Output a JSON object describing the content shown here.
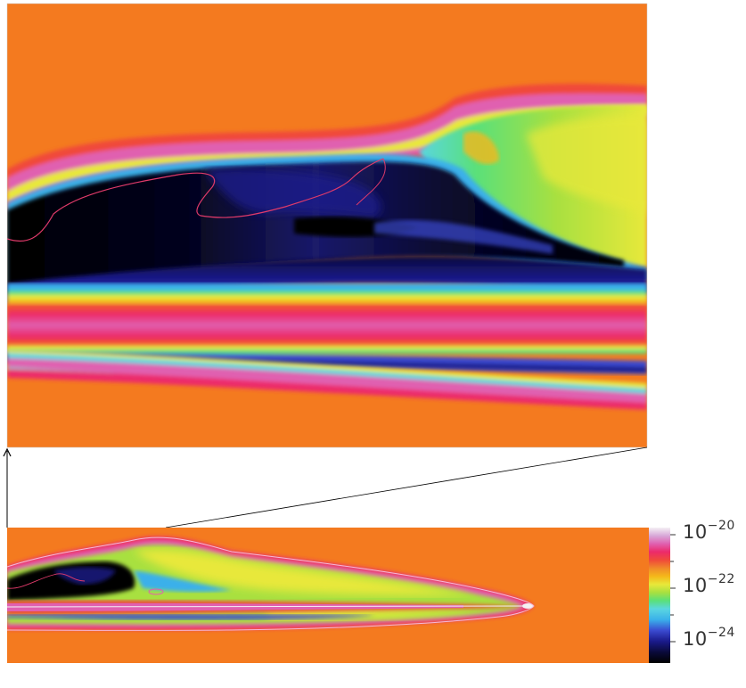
{
  "figure": {
    "background_color": "#f47a1f",
    "colormap": [
      "#000000",
      "#0a0a3a",
      "#1a1a8a",
      "#3a4ad0",
      "#3ab0ea",
      "#5ad6e0",
      "#5ae07a",
      "#a8e040",
      "#e8e83a",
      "#f4b81a",
      "#f08a2a",
      "#f04a3a",
      "#ec2a6a",
      "#e060b0",
      "#d8a8d8",
      "#f4f0f4"
    ],
    "colorbar": {
      "labels": [
        {
          "base": "10",
          "exponent": "−20"
        },
        {
          "base": "10",
          "exponent": "−22"
        },
        {
          "base": "10",
          "exponent": "−24"
        }
      ],
      "scale": "log",
      "range": [
        "1e-25",
        "1e-20"
      ]
    }
  }
}
